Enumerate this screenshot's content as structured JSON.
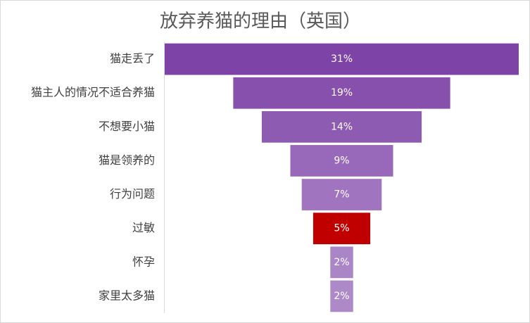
{
  "chart_data": {
    "type": "funnel",
    "title": "放弃养猫的理由（英国）",
    "categories": [
      "猫走丢了",
      "猫主人的情况不适合养猫",
      "不想要小猫",
      "猫是领养的",
      "行为问题",
      "过敏",
      "怀孕",
      "家里太多猫"
    ],
    "values": [
      31,
      19,
      14,
      9,
      7,
      5,
      2,
      2
    ],
    "value_labels": [
      "31%",
      "19%",
      "14%",
      "9%",
      "7%",
      "5%",
      "2%",
      "2%"
    ],
    "colors": [
      "#7e43a7",
      "#8750ad",
      "#8e5bb3",
      "#9868ba",
      "#a174c0",
      "#c00000",
      "#ab86c7",
      "#ad89c8"
    ]
  }
}
